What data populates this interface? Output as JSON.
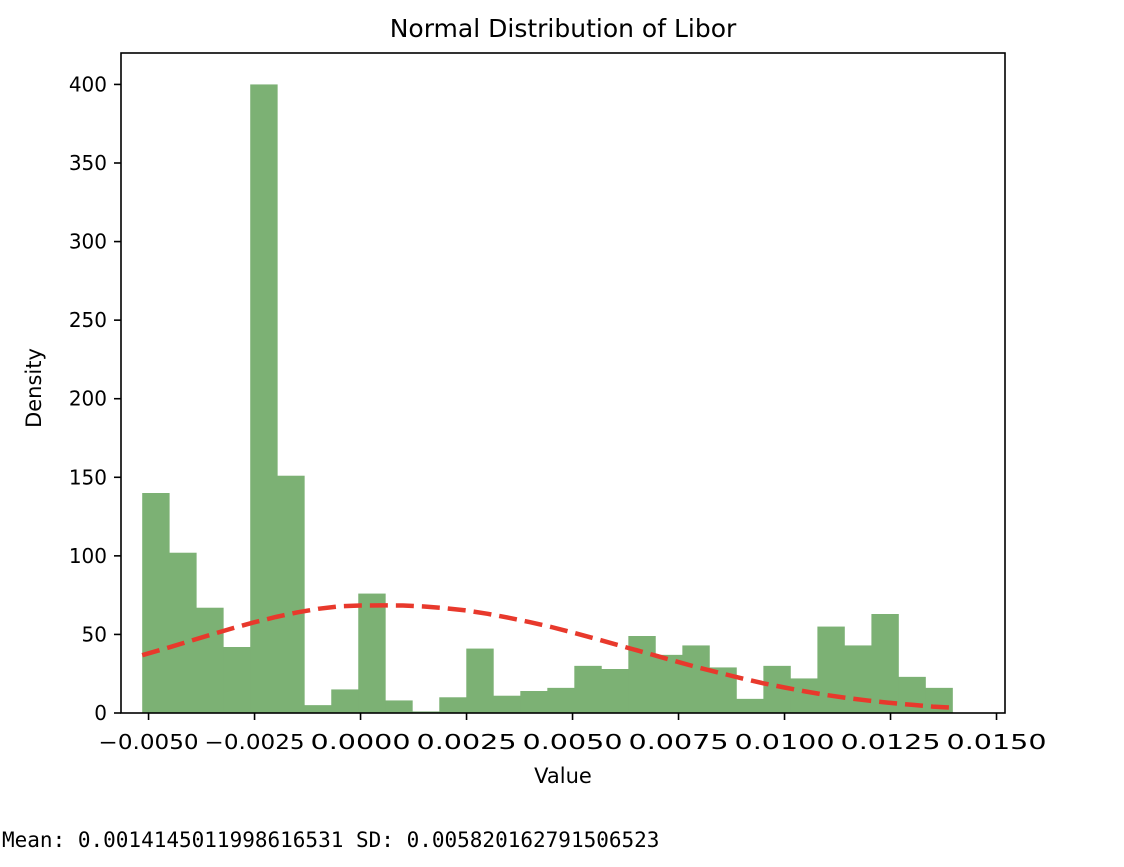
{
  "chart_data": {
    "type": "bar",
    "title": "Normal Distribution of Libor",
    "xlabel": "Value",
    "ylabel": "Density",
    "xlim": [
      -0.00565,
      0.0152
    ],
    "ylim": [
      0,
      420
    ],
    "xticks": [
      -0.005,
      -0.0025,
      0.0,
      0.0025,
      0.005,
      0.0075,
      0.01,
      0.0125,
      0.015
    ],
    "xtick_labels": [
      "−0.0050",
      "−0.0025",
      "0.0000",
      "0.0025",
      "0.0050",
      "0.0075",
      "0.0100",
      "0.0125",
      "0.0150"
    ],
    "yticks": [
      0,
      50,
      100,
      150,
      200,
      250,
      300,
      350,
      400
    ],
    "ytick_labels": [
      "0",
      "50",
      "100",
      "150",
      "200",
      "250",
      "300",
      "350",
      "400"
    ],
    "grid": false,
    "bin_start": -0.00515,
    "bin_width": 0.000637,
    "values": [
      140,
      102,
      67,
      42,
      400,
      151,
      5,
      15,
      76,
      8,
      1,
      10,
      41,
      11,
      14,
      16,
      30,
      28,
      49,
      37,
      43,
      29,
      9,
      30,
      22,
      55,
      43,
      63,
      23,
      16
    ],
    "bar_color": "#7cb174",
    "series": [
      {
        "name": "",
        "style": "dashed",
        "color": "#e8392c",
        "x": [
          -0.00515,
          -0.0045,
          -0.004,
          -0.0035,
          -0.003,
          -0.0025,
          -0.002,
          -0.0015,
          -0.001,
          -0.0005,
          0.0,
          0.0005,
          0.001,
          0.0015,
          0.002,
          0.0025,
          0.003,
          0.0035,
          0.004,
          0.0045,
          0.005,
          0.0055,
          0.006,
          0.0065,
          0.007,
          0.0075,
          0.008,
          0.0085,
          0.009,
          0.0095,
          0.01,
          0.0105,
          0.011,
          0.0115,
          0.012,
          0.0125,
          0.013,
          0.0135,
          0.014
        ],
        "y": [
          36.8,
          41.9,
          46.0,
          50.1,
          54.1,
          57.8,
          61.1,
          64.0,
          66.3,
          67.9,
          68.4,
          68.5,
          68.4,
          67.8,
          66.7,
          65.2,
          63.1,
          60.6,
          57.8,
          54.7,
          51.2,
          47.6,
          43.8,
          40.0,
          36.2,
          32.4,
          28.7,
          25.3,
          22.0,
          18.9,
          16.2,
          13.7,
          11.4,
          9.5,
          7.8,
          6.4,
          5.2,
          4.1,
          3.3
        ]
      }
    ]
  },
  "stats_text": "Mean: 0.0014145011998616531 SD: 0.005820162791506523"
}
